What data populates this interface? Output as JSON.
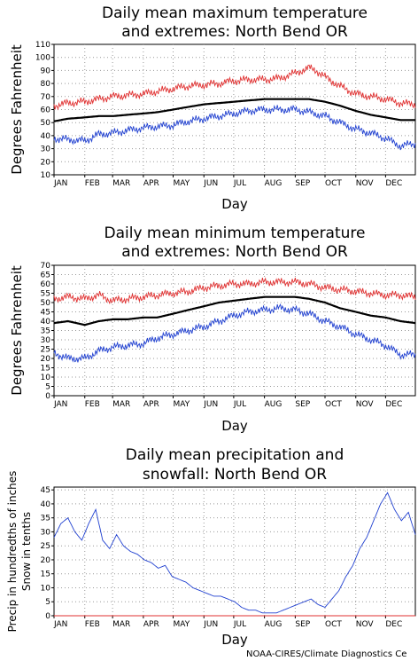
{
  "footer": "NOAA-CIRES/Climate Diagnostics Ce",
  "chart_data": [
    {
      "type": "line",
      "title": "Daily mean maximum temperature\nand extremes: North Bend OR",
      "xlabel": "Day",
      "ylabel": "Degrees Fahrenheit",
      "ylim": [
        10,
        110
      ],
      "yticks": [
        10,
        20,
        30,
        40,
        50,
        60,
        70,
        80,
        90,
        100,
        110
      ],
      "months": [
        "JAN",
        "FEB",
        "MAR",
        "APR",
        "MAY",
        "JUN",
        "JUL",
        "AUG",
        "SEP",
        "OCT",
        "NOV",
        "DEC"
      ],
      "grid": true,
      "series": [
        {
          "role": "record-high",
          "color": "#e03030",
          "x": [
            1,
            15,
            32,
            46,
            60,
            75,
            91,
            105,
            121,
            136,
            152,
            167,
            182,
            197,
            213,
            228,
            244,
            258,
            265,
            274,
            289,
            305,
            320,
            335,
            350,
            365
          ],
          "values": [
            63,
            65,
            66,
            68,
            70,
            71,
            72,
            74,
            76,
            78,
            79,
            80,
            82,
            83,
            83,
            84,
            88,
            92,
            90,
            85,
            78,
            72,
            70,
            68,
            65,
            64
          ]
        },
        {
          "role": "mean",
          "color": "#000000",
          "x": [
            1,
            15,
            32,
            46,
            60,
            75,
            91,
            105,
            121,
            136,
            152,
            167,
            182,
            197,
            213,
            228,
            244,
            258,
            274,
            289,
            305,
            320,
            335,
            350,
            365
          ],
          "values": [
            51,
            53,
            54,
            55,
            55,
            56,
            57,
            58,
            60,
            62,
            64,
            65,
            66,
            67,
            68,
            68,
            68,
            68,
            66,
            63,
            59,
            56,
            54,
            52,
            52
          ]
        },
        {
          "role": "record-low",
          "color": "#2040d0",
          "x": [
            1,
            15,
            32,
            46,
            60,
            75,
            91,
            105,
            121,
            136,
            152,
            167,
            182,
            197,
            213,
            228,
            244,
            258,
            274,
            289,
            305,
            320,
            335,
            350,
            365
          ],
          "values": [
            38,
            37,
            36,
            41,
            42,
            44,
            46,
            47,
            48,
            51,
            53,
            55,
            57,
            59,
            60,
            60,
            60,
            58,
            55,
            50,
            45,
            42,
            38,
            32,
            34
          ]
        }
      ]
    },
    {
      "type": "line",
      "title": "Daily mean minimum temperature\nand extremes: North Bend OR",
      "xlabel": "Day",
      "ylabel": "Degrees Fahrenheit",
      "ylim": [
        0,
        70
      ],
      "yticks": [
        0,
        5,
        10,
        15,
        20,
        25,
        30,
        35,
        40,
        45,
        50,
        55,
        60,
        65,
        70
      ],
      "months": [
        "JAN",
        "FEB",
        "MAR",
        "APR",
        "MAY",
        "JUN",
        "JUL",
        "AUG",
        "SEP",
        "OCT",
        "NOV",
        "DEC"
      ],
      "grid": true,
      "series": [
        {
          "role": "record-high",
          "color": "#e03030",
          "x": [
            1,
            15,
            32,
            46,
            60,
            75,
            91,
            105,
            121,
            136,
            152,
            167,
            182,
            197,
            213,
            228,
            244,
            258,
            274,
            289,
            305,
            320,
            335,
            350,
            365
          ],
          "values": [
            52,
            53,
            52,
            54,
            51,
            52,
            53,
            54,
            55,
            56,
            58,
            59,
            60,
            60,
            61,
            61,
            61,
            60,
            58,
            57,
            56,
            55,
            54,
            54,
            53
          ]
        },
        {
          "role": "mean",
          "color": "#000000",
          "x": [
            1,
            15,
            32,
            46,
            60,
            75,
            91,
            105,
            121,
            136,
            152,
            167,
            182,
            197,
            213,
            228,
            244,
            258,
            274,
            289,
            305,
            320,
            335,
            350,
            365
          ],
          "values": [
            39,
            40,
            38,
            40,
            41,
            41,
            42,
            42,
            44,
            46,
            48,
            50,
            51,
            52,
            53,
            53,
            53,
            52,
            50,
            47,
            45,
            43,
            42,
            40,
            39
          ]
        },
        {
          "role": "record-low",
          "color": "#2040d0",
          "x": [
            1,
            15,
            32,
            46,
            60,
            75,
            91,
            105,
            121,
            136,
            152,
            167,
            182,
            197,
            213,
            228,
            244,
            258,
            274,
            289,
            305,
            320,
            335,
            350,
            365
          ],
          "values": [
            23,
            20,
            20,
            24,
            26,
            27,
            28,
            31,
            33,
            35,
            37,
            40,
            43,
            45,
            46,
            47,
            46,
            44,
            40,
            37,
            33,
            30,
            27,
            22,
            22
          ]
        }
      ]
    },
    {
      "type": "line",
      "title": "Daily mean precipitation and\nsnowfall: North Bend OR",
      "xlabel": "Day",
      "ylabel": "Precip in hundredths of inches\nSnow in tenths",
      "ylim": [
        0,
        46
      ],
      "yticks": [
        0,
        5,
        10,
        15,
        20,
        25,
        30,
        35,
        40,
        45
      ],
      "months": [
        "JAN",
        "FEB",
        "MAR",
        "APR",
        "MAY",
        "JUN",
        "JUL",
        "AUG",
        "SEP",
        "OCT",
        "NOV",
        "DEC"
      ],
      "grid": true,
      "series": [
        {
          "role": "precipitation",
          "color": "#2040d0",
          "x": [
            1,
            8,
            15,
            22,
            29,
            36,
            43,
            50,
            57,
            64,
            71,
            78,
            85,
            92,
            99,
            106,
            113,
            120,
            127,
            134,
            141,
            148,
            155,
            162,
            169,
            176,
            183,
            190,
            197,
            204,
            211,
            218,
            225,
            232,
            239,
            246,
            253,
            260,
            267,
            274,
            281,
            288,
            295,
            302,
            309,
            316,
            323,
            330,
            337,
            344,
            351,
            358,
            365
          ],
          "values": [
            28,
            33,
            35,
            30,
            27,
            33,
            38,
            27,
            24,
            29,
            25,
            23,
            22,
            20,
            19,
            17,
            18,
            14,
            13,
            12,
            10,
            9,
            8,
            7,
            7,
            6,
            5,
            3,
            2,
            2,
            1,
            1,
            1,
            2,
            3,
            4,
            5,
            6,
            4,
            3,
            6,
            9,
            14,
            18,
            24,
            28,
            34,
            40,
            44,
            38,
            34,
            37,
            29
          ]
        },
        {
          "role": "snowfall",
          "color": "#e03030",
          "x": [
            1,
            365
          ],
          "values": [
            0,
            0
          ]
        }
      ]
    }
  ]
}
